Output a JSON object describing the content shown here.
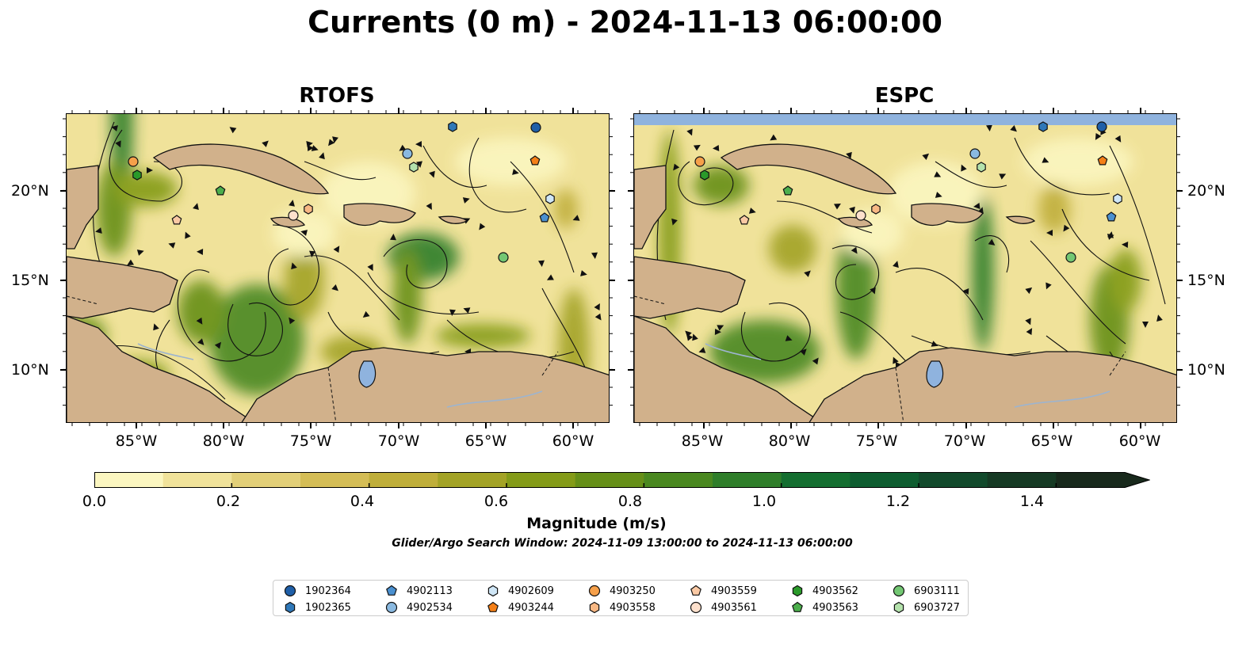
{
  "title": "Currents (0 m) - 2024-11-13 06:00:00",
  "panels": [
    {
      "title": "RTOFS"
    },
    {
      "title": "ESPC"
    }
  ],
  "x_ticks": [
    "85°W",
    "80°W",
    "75°W",
    "70°W",
    "65°W",
    "60°W"
  ],
  "y_ticks": [
    "20°N",
    "15°N",
    "10°N"
  ],
  "colorbar": {
    "label": "Magnitude (m/s)",
    "min": 0.0,
    "max": 1.5,
    "extend": "max",
    "ticks": [
      "0.0",
      "0.2",
      "0.4",
      "0.6",
      "0.8",
      "1.0",
      "1.2",
      "1.4"
    ],
    "colors": [
      "#fbf6c0",
      "#f0e29a",
      "#e2cf78",
      "#d4bd56",
      "#bfae3a",
      "#a3a326",
      "#849b18",
      "#668f18",
      "#4a8820",
      "#2f7e2a",
      "#146e30",
      "#0e5d30",
      "#124a2c",
      "#163a24",
      "#18291c"
    ]
  },
  "search_window": "Glider/Argo Search Window: 2024-11-09 13:00:00 to 2024-11-13 06:00:00",
  "legend": [
    {
      "id": "1902364",
      "marker": "circle",
      "color": "#1f5fa8"
    },
    {
      "id": "1902365",
      "marker": "hexagon",
      "color": "#2f78b8"
    },
    {
      "id": "4902113",
      "marker": "pentagon",
      "color": "#4a90d0"
    },
    {
      "id": "4902534",
      "marker": "circle",
      "color": "#8ab9e0"
    },
    {
      "id": "4902609",
      "marker": "hexagon",
      "color": "#cfe6f6"
    },
    {
      "id": "4903244",
      "marker": "pentagon",
      "color": "#f47f17"
    },
    {
      "id": "4903250",
      "marker": "circle",
      "color": "#f6a04a"
    },
    {
      "id": "4903558",
      "marker": "hexagon",
      "color": "#f8b884"
    },
    {
      "id": "4903559",
      "marker": "pentagon",
      "color": "#fac9a4"
    },
    {
      "id": "4903561",
      "marker": "circle",
      "color": "#fde0cc"
    },
    {
      "id": "4903562",
      "marker": "hexagon",
      "color": "#2a9a2a"
    },
    {
      "id": "4903563",
      "marker": "pentagon",
      "color": "#4cae4c"
    },
    {
      "id": "6903111",
      "marker": "circle",
      "color": "#73c773"
    },
    {
      "id": "6903727",
      "marker": "hexagon",
      "color": "#b4e2ac"
    }
  ],
  "colors": {
    "land": "#d1b18b",
    "lakes": "#8fb3de",
    "rivers": "#9db4cf"
  }
}
